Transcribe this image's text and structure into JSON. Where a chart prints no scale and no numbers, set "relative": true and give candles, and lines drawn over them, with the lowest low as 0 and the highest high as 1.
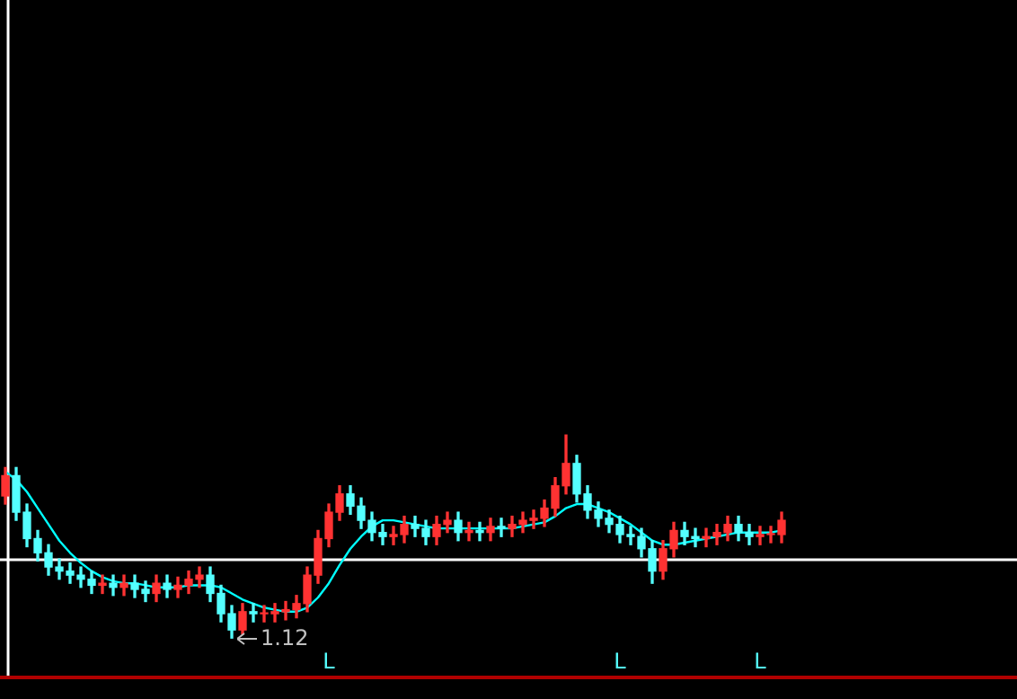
{
  "chart_data": {
    "type": "candlestick",
    "relative": true,
    "categories": [
      null,
      null,
      null,
      null,
      null,
      null,
      null,
      null,
      null,
      null,
      null,
      null,
      null,
      null,
      null,
      null,
      null,
      null,
      null,
      null,
      null,
      null,
      null,
      null,
      null,
      null,
      null,
      null,
      null,
      null,
      null,
      null,
      null,
      null,
      null,
      null,
      null,
      null,
      null,
      null,
      null,
      null,
      null,
      null,
      null,
      null,
      null,
      null,
      null,
      null,
      null,
      null,
      null,
      null,
      null,
      null,
      null,
      null,
      null,
      null,
      null,
      null,
      null,
      null,
      null,
      null,
      null,
      null,
      null,
      null,
      null,
      null,
      null
    ],
    "ohlc": [
      [
        0.7,
        0.84,
        0.66,
        0.8
      ],
      [
        0.8,
        0.84,
        0.58,
        0.62
      ],
      [
        0.62,
        0.66,
        0.45,
        0.49
      ],
      [
        0.49,
        0.53,
        0.38,
        0.42
      ],
      [
        0.42,
        0.46,
        0.31,
        0.35
      ],
      [
        0.35,
        0.39,
        0.29,
        0.33
      ],
      [
        0.33,
        0.37,
        0.27,
        0.31
      ],
      [
        0.31,
        0.35,
        0.25,
        0.29
      ],
      [
        0.29,
        0.33,
        0.22,
        0.26
      ],
      [
        0.26,
        0.31,
        0.22,
        0.27
      ],
      [
        0.27,
        0.31,
        0.21,
        0.25
      ],
      [
        0.25,
        0.31,
        0.21,
        0.27
      ],
      [
        0.27,
        0.31,
        0.2,
        0.24
      ],
      [
        0.24,
        0.28,
        0.18,
        0.22
      ],
      [
        0.22,
        0.31,
        0.18,
        0.27
      ],
      [
        0.27,
        0.31,
        0.2,
        0.24
      ],
      [
        0.24,
        0.3,
        0.2,
        0.26
      ],
      [
        0.26,
        0.33,
        0.22,
        0.29
      ],
      [
        0.29,
        0.35,
        0.25,
        0.31
      ],
      [
        0.31,
        0.35,
        0.18,
        0.22
      ],
      [
        0.22,
        0.26,
        0.08,
        0.12
      ],
      [
        0.12,
        0.16,
        0,
        0.04
      ],
      [
        0.04,
        0.17,
        0.02,
        0.13
      ],
      [
        0.13,
        0.17,
        0.08,
        0.12
      ],
      [
        0.12,
        0.16,
        0.08,
        0.12
      ],
      [
        0.12,
        0.17,
        0.08,
        0.13
      ],
      [
        0.13,
        0.18,
        0.09,
        0.14
      ],
      [
        0.14,
        0.21,
        0.1,
        0.17
      ],
      [
        0.17,
        0.35,
        0.13,
        0.31
      ],
      [
        0.31,
        0.53,
        0.27,
        0.49
      ],
      [
        0.49,
        0.66,
        0.45,
        0.62
      ],
      [
        0.62,
        0.75,
        0.58,
        0.71
      ],
      [
        0.71,
        0.75,
        0.61,
        0.65
      ],
      [
        0.65,
        0.69,
        0.54,
        0.58
      ],
      [
        0.58,
        0.62,
        0.48,
        0.52
      ],
      [
        0.52,
        0.56,
        0.46,
        0.5
      ],
      [
        0.5,
        0.55,
        0.46,
        0.51
      ],
      [
        0.51,
        0.6,
        0.47,
        0.56
      ],
      [
        0.56,
        0.6,
        0.5,
        0.54
      ],
      [
        0.54,
        0.58,
        0.46,
        0.5
      ],
      [
        0.5,
        0.6,
        0.46,
        0.56
      ],
      [
        0.56,
        0.62,
        0.52,
        0.58
      ],
      [
        0.58,
        0.62,
        0.48,
        0.52
      ],
      [
        0.52,
        0.57,
        0.48,
        0.53
      ],
      [
        0.53,
        0.57,
        0.48,
        0.52
      ],
      [
        0.52,
        0.59,
        0.48,
        0.55
      ],
      [
        0.55,
        0.59,
        0.5,
        0.54
      ],
      [
        0.54,
        0.6,
        0.5,
        0.56
      ],
      [
        0.56,
        0.62,
        0.52,
        0.58
      ],
      [
        0.58,
        0.63,
        0.54,
        0.59
      ],
      [
        0.59,
        0.68,
        0.55,
        0.64
      ],
      [
        0.64,
        0.79,
        0.6,
        0.75
      ],
      [
        0.75,
        1,
        0.71,
        0.86
      ],
      [
        0.86,
        0.9,
        0.67,
        0.71
      ],
      [
        0.71,
        0.75,
        0.59,
        0.63
      ],
      [
        0.63,
        0.67,
        0.55,
        0.59
      ],
      [
        0.59,
        0.63,
        0.52,
        0.56
      ],
      [
        0.56,
        0.6,
        0.47,
        0.51
      ],
      [
        0.51,
        0.55,
        0.46,
        0.5
      ],
      [
        0.5,
        0.54,
        0.4,
        0.44
      ],
      [
        0.44,
        0.48,
        0.27,
        0.33
      ],
      [
        0.33,
        0.48,
        0.29,
        0.44
      ],
      [
        0.44,
        0.57,
        0.4,
        0.53
      ],
      [
        0.53,
        0.57,
        0.46,
        0.5
      ],
      [
        0.5,
        0.54,
        0.45,
        0.49
      ],
      [
        0.49,
        0.54,
        0.45,
        0.5
      ],
      [
        0.5,
        0.56,
        0.46,
        0.52
      ],
      [
        0.52,
        0.6,
        0.48,
        0.56
      ],
      [
        0.56,
        0.6,
        0.48,
        0.52
      ],
      [
        0.52,
        0.56,
        0.46,
        0.5
      ],
      [
        0.5,
        0.55,
        0.46,
        0.51
      ],
      [
        0.51,
        0.55,
        0.47,
        0.51
      ],
      [
        0.51,
        0.62,
        0.47,
        0.58
      ]
    ],
    "series": [
      {
        "type": "line",
        "color": "#00ffff",
        "values": [
          0.82,
          0.78,
          0.72,
          0.64,
          0.56,
          0.48,
          0.42,
          0.37,
          0.33,
          0.3,
          0.28,
          0.27,
          0.27,
          0.26,
          0.25,
          0.25,
          0.25,
          0.26,
          0.26,
          0.26,
          0.25,
          0.22,
          0.19,
          0.17,
          0.15,
          0.14,
          0.13,
          0.13,
          0.15,
          0.2,
          0.27,
          0.36,
          0.44,
          0.5,
          0.55,
          0.58,
          0.58,
          0.57,
          0.56,
          0.55,
          0.54,
          0.54,
          0.54,
          0.54,
          0.54,
          0.54,
          0.54,
          0.54,
          0.55,
          0.56,
          0.57,
          0.6,
          0.64,
          0.66,
          0.66,
          0.64,
          0.62,
          0.59,
          0.56,
          0.52,
          0.48,
          0.46,
          0.46,
          0.47,
          0.48,
          0.49,
          0.5,
          0.51,
          0.52,
          0.52,
          0.52,
          0.52,
          0.53
        ]
      }
    ],
    "ref_lines": [
      {
        "axis": "y",
        "value": 0.39,
        "color": "#ffffff"
      }
    ],
    "annotations": [
      "1.12",
      "L",
      "L",
      "L"
    ],
    "legend": false
  }
}
